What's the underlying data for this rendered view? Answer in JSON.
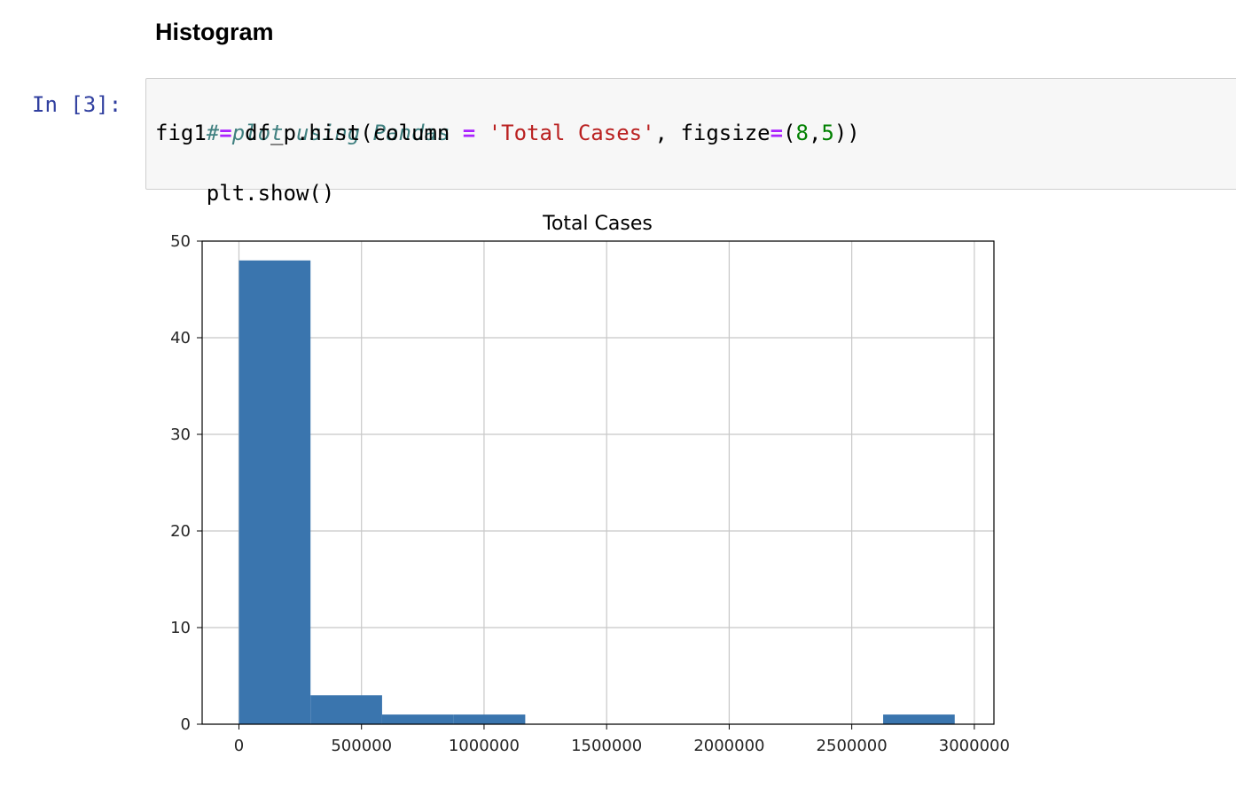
{
  "markdown": {
    "heading": "Histogram"
  },
  "cell": {
    "prompt": "In [3]:",
    "code": {
      "line1": {
        "comment": "# plot using Pandas"
      },
      "line2": {
        "var": "fig1 ",
        "eq1": "=",
        "call": " df_p.hist(column ",
        "eq2": "=",
        "space": " ",
        "str": "'Total Cases'",
        "comma": ", figsize",
        "eq3": "=",
        "open": "(",
        "num1": "8",
        "sep": ",",
        "num2": "5",
        "close": "))"
      },
      "line3": {
        "text": "plt.show()"
      }
    }
  },
  "chart_data": {
    "type": "bar",
    "title": "Total Cases",
    "xlabel": "",
    "ylabel": "",
    "bins": [
      {
        "start": 0,
        "end": 292000,
        "count": 48
      },
      {
        "start": 292000,
        "end": 584000,
        "count": 3
      },
      {
        "start": 584000,
        "end": 876000,
        "count": 1
      },
      {
        "start": 876000,
        "end": 1168000,
        "count": 1
      },
      {
        "start": 1168000,
        "end": 1460000,
        "count": 0
      },
      {
        "start": 1460000,
        "end": 1752000,
        "count": 0
      },
      {
        "start": 1752000,
        "end": 2044000,
        "count": 0
      },
      {
        "start": 2044000,
        "end": 2336000,
        "count": 0
      },
      {
        "start": 2336000,
        "end": 2628000,
        "count": 0
      },
      {
        "start": 2628000,
        "end": 2920000,
        "count": 1
      }
    ],
    "xlim": [
      -150000,
      3080000
    ],
    "ylim": [
      0,
      50
    ],
    "xticks": [
      0,
      500000,
      1000000,
      1500000,
      2000000,
      2500000,
      3000000
    ],
    "xtick_labels": [
      "0",
      "500000",
      "1000000",
      "1500000",
      "2000000",
      "2500000",
      "3000000"
    ],
    "yticks": [
      0,
      10,
      20,
      30,
      40,
      50
    ],
    "ytick_labels": [
      "0",
      "10",
      "20",
      "30",
      "40",
      "50"
    ],
    "grid": true,
    "bar_color": "#3a75ae",
    "grid_color": "#c8c8c8"
  }
}
